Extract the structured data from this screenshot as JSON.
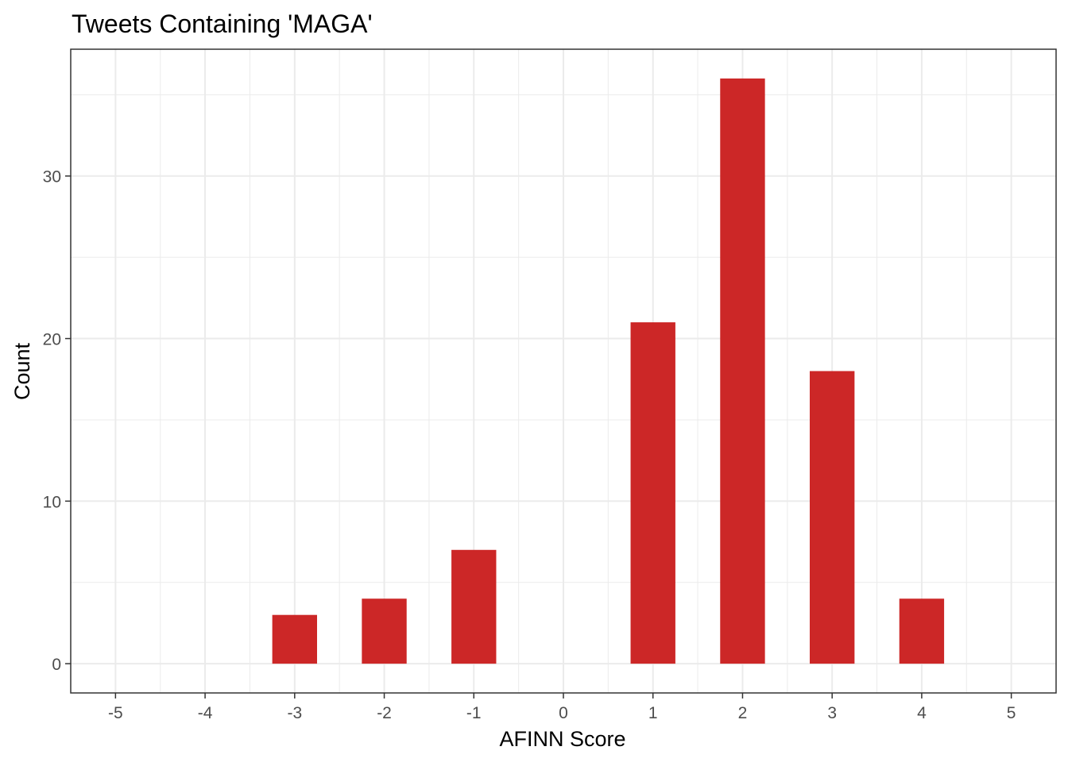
{
  "chart_data": {
    "type": "bar",
    "title": "Tweets Containing 'MAGA'",
    "xlabel": "AFINN Score",
    "ylabel": "Count",
    "x": [
      -3,
      -2,
      -1,
      1,
      2,
      3,
      4
    ],
    "values": [
      3,
      4,
      7,
      21,
      36,
      18,
      4
    ],
    "bar_color": "#cc2727",
    "xlim": [
      -5.5,
      5.5
    ],
    "ylim": [
      -1.8,
      37.8
    ],
    "x_ticks": [
      -5,
      -4,
      -3,
      -2,
      -1,
      0,
      1,
      2,
      3,
      4,
      5
    ],
    "x_tick_labels": [
      "-5",
      "-4",
      "-3",
      "-2",
      "-1",
      "0",
      "1",
      "2",
      "3",
      "4",
      "5"
    ],
    "y_ticks": [
      0,
      10,
      20,
      30
    ],
    "y_tick_labels": [
      "0",
      "10",
      "20",
      "30"
    ],
    "grid": true,
    "legend": "none"
  }
}
